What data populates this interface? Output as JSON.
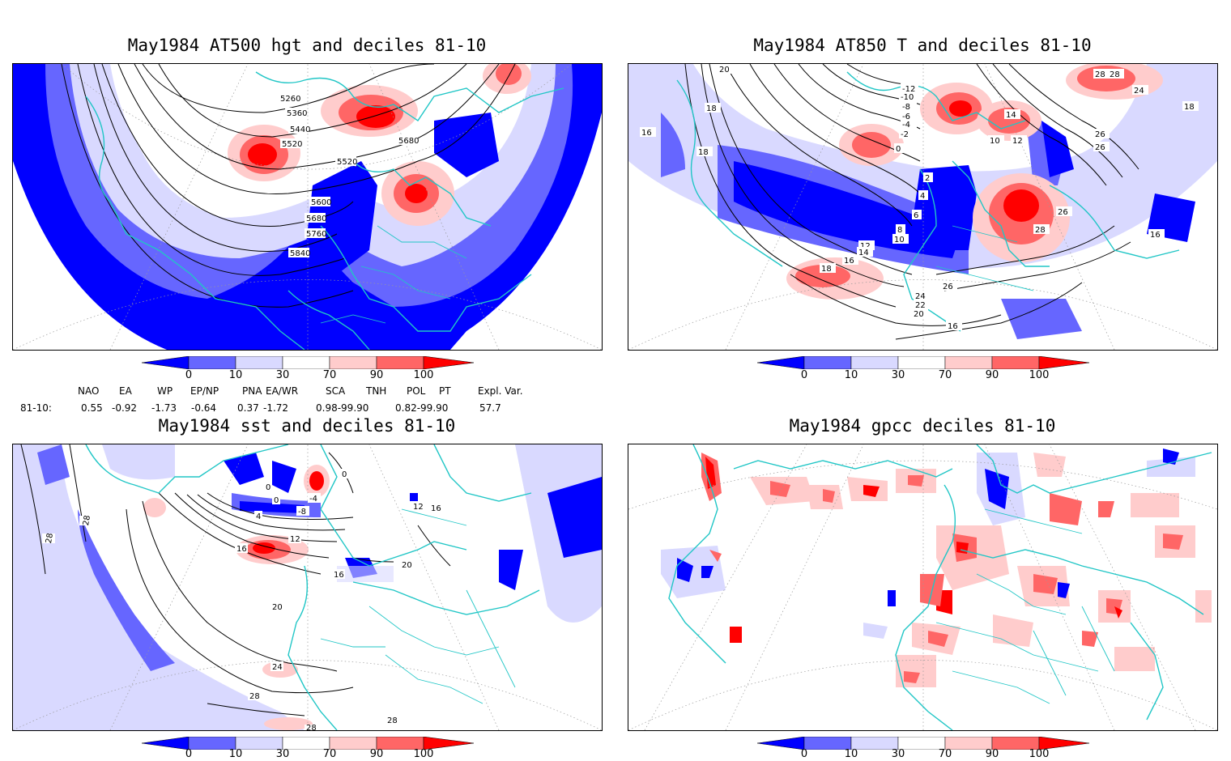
{
  "panels": [
    {
      "id": "p1",
      "title": "May1984 AT500 hgt and deciles 81-10",
      "contour_labels": [
        "5260",
        "5360",
        "5440",
        "5520",
        "5520",
        "5600",
        "5680",
        "5760",
        "5840",
        "5680"
      ]
    },
    {
      "id": "p2",
      "title": "May1984 AT850 T and deciles 81-10",
      "contour_labels": [
        "20",
        "18",
        "16",
        "18",
        "-12",
        "-10",
        "-8",
        "-6",
        "-4",
        "-2",
        "0",
        "14",
        "12",
        "10",
        "28",
        "28",
        "24",
        "18",
        "26",
        "26",
        "2",
        "4",
        "6",
        "8",
        "10",
        "12",
        "14",
        "16",
        "18",
        "26",
        "28",
        "26",
        "24",
        "22",
        "20",
        "16",
        "16"
      ]
    },
    {
      "id": "p3",
      "title": "May1984 sst and deciles 81-10",
      "contour_labels": [
        "28",
        "28",
        "0",
        "0",
        "-4",
        "-8",
        "0",
        "4",
        "12",
        "12",
        "16",
        "16",
        "16",
        "20",
        "20",
        "24",
        "28",
        "28",
        "28"
      ]
    },
    {
      "id": "p4",
      "title": "May1984 gpcc deciles 81-10",
      "contour_labels": []
    }
  ],
  "colorbar": {
    "labels": [
      "0",
      "10",
      "30",
      "70",
      "90",
      "100"
    ],
    "colors": [
      "#0000ff",
      "#6666ff",
      "#d9d9ff",
      "#ffffff",
      "#ffcccc",
      "#ff6666",
      "#ff0000"
    ]
  },
  "teleconnections": {
    "row_label": "81-10:",
    "columns": [
      {
        "name": "NAO",
        "value": "0.55"
      },
      {
        "name": "EA",
        "value": "-0.92"
      },
      {
        "name": "WP",
        "value": "-1.73"
      },
      {
        "name": "EP/NP",
        "value": "-0.64"
      },
      {
        "name": "PNA",
        "value": "0.37"
      },
      {
        "name": "EA/WR",
        "value": "-1.72"
      },
      {
        "name": "SCA",
        "value": "0.98-99.90"
      },
      {
        "name": "TNH",
        "value": ""
      },
      {
        "name": "POL",
        "value": "0.82-99.90"
      },
      {
        "name": "PT",
        "value": ""
      },
      {
        "name": "Expl. Var.",
        "value": "57.7"
      }
    ]
  },
  "colors": {
    "coastline": "#21c6c6",
    "strong_below": "#0000ff",
    "moderate_below": "#6666ff",
    "weak_below": "#d9d9ff",
    "weak_above": "#ffcccc",
    "moderate_above": "#ff6666",
    "strong_above": "#ff0000"
  }
}
